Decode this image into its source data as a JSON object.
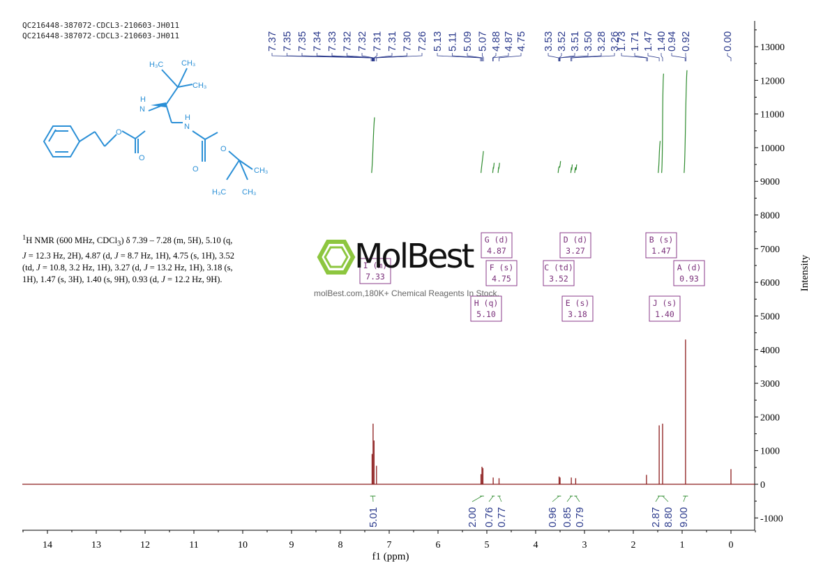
{
  "header": {
    "line1": "QC216448-387072-CDCL3-210603-JH011",
    "line2": "QC216448-387072-CDCL3-210603-JH011"
  },
  "nmr_text": {
    "sup": "1",
    "p1": "H NMR (600 MHz, CDCl",
    "sub": "3",
    "p2": ") δ 7.39 – 7.28 (m, 5H), 5.10 (q,",
    "j1": "J",
    "p3": " = 12.3 Hz, 2H), 4.87 (d, ",
    "j2": "J",
    "p4": " = 8.7 Hz, 1H), 4.75 (s, 1H), 3.52",
    "p5": "(td, ",
    "j3": "J",
    "p6": " = 10.8, 3.2 Hz, 1H), 3.27 (d, ",
    "j4": "J",
    "p7": " = 13.2 Hz, 1H), 3.18 (s,",
    "p8": "1H), 1.47 (s, 3H), 1.40 (s, 9H), 0.93 (d, ",
    "j5": "J",
    "p9": " = 12.2 Hz, 9H)."
  },
  "watermark": {
    "logo_text": "MolBest",
    "subtitle": "molBest.com,180K+ Chemical Reagents In Stock."
  },
  "structure_labels": {
    "h3c_top": "H₃C",
    "ch3_top": "CH₃",
    "ch3_mid": "CH₃",
    "nh_left_n": "N",
    "nh_left_h": "H",
    "nh_right_n": "N",
    "nh_right_h": "H",
    "o_left_ester": "O",
    "o_left_carbonyl": "O",
    "o_right_carbonyl": "O",
    "o_right_ester": "O",
    "ch3_right": "CH₃",
    "h3c_bottom": "H₃C",
    "ch3_bottom": "CH₃"
  },
  "colors": {
    "spectrum": "#8b1a1a",
    "integral": "#2e8b2e",
    "peak_labels": "#2b3a8c",
    "multiplet_box": "#8a3a8a",
    "structure": "#2a8fd6"
  },
  "chart_data": {
    "type": "line",
    "title": "",
    "xlabel": "f1 (ppm)",
    "ylabel": "Intensity",
    "xlim": [
      14.6,
      -0.5
    ],
    "ylim": [
      -1400,
      13700
    ],
    "x_reversed": true,
    "x_ticks": [
      "14",
      "13",
      "12",
      "11",
      "10",
      "9",
      "8",
      "7",
      "6",
      "5",
      "4",
      "3",
      "2",
      "1",
      "0"
    ],
    "x_tick_values": [
      14,
      13,
      12,
      11,
      10,
      9,
      8,
      7,
      6,
      5,
      4,
      3,
      2,
      1,
      0
    ],
    "y_ticks": [
      "-1000",
      "0",
      "1000",
      "2000",
      "3000",
      "4000",
      "5000",
      "6000",
      "7000",
      "8000",
      "9000",
      "10000",
      "11000",
      "12000",
      "13000"
    ],
    "y_tick_values": [
      -1000,
      0,
      1000,
      2000,
      3000,
      4000,
      5000,
      6000,
      7000,
      8000,
      9000,
      10000,
      11000,
      12000,
      13000
    ],
    "grid": false,
    "peaks": [
      {
        "ppm": 7.33,
        "height": 1800
      },
      {
        "ppm": 7.31,
        "height": 1300
      },
      {
        "ppm": 7.35,
        "height": 900
      },
      {
        "ppm": 7.26,
        "height": 550
      },
      {
        "ppm": 5.1,
        "height": 520
      },
      {
        "ppm": 5.08,
        "height": 480
      },
      {
        "ppm": 5.12,
        "height": 300
      },
      {
        "ppm": 4.87,
        "height": 200
      },
      {
        "ppm": 4.75,
        "height": 180
      },
      {
        "ppm": 3.52,
        "height": 230
      },
      {
        "ppm": 3.5,
        "height": 200
      },
      {
        "ppm": 3.27,
        "height": 200
      },
      {
        "ppm": 3.18,
        "height": 180
      },
      {
        "ppm": 1.73,
        "height": 280
      },
      {
        "ppm": 1.47,
        "height": 1750
      },
      {
        "ppm": 1.4,
        "height": 1800
      },
      {
        "ppm": 0.93,
        "height": 4300
      },
      {
        "ppm": 0.0,
        "height": 450
      }
    ],
    "peak_labels": [
      {
        "ppm": 7.37,
        "text": "7.37"
      },
      {
        "ppm": 7.35,
        "text": "7.35"
      },
      {
        "ppm": 7.35,
        "text": "7.35"
      },
      {
        "ppm": 7.34,
        "text": "7.34"
      },
      {
        "ppm": 7.33,
        "text": "7.33"
      },
      {
        "ppm": 7.32,
        "text": "7.32"
      },
      {
        "ppm": 7.32,
        "text": "7.32"
      },
      {
        "ppm": 7.31,
        "text": "7.31"
      },
      {
        "ppm": 7.31,
        "text": "7.31"
      },
      {
        "ppm": 7.3,
        "text": "7.30"
      },
      {
        "ppm": 7.26,
        "text": "7.26"
      },
      {
        "ppm": 5.13,
        "text": "5.13"
      },
      {
        "ppm": 5.11,
        "text": "5.11"
      },
      {
        "ppm": 5.09,
        "text": "5.09"
      },
      {
        "ppm": 5.07,
        "text": "5.07"
      },
      {
        "ppm": 4.88,
        "text": "4.88"
      },
      {
        "ppm": 4.87,
        "text": "4.87"
      },
      {
        "ppm": 4.75,
        "text": "4.75"
      },
      {
        "ppm": 3.53,
        "text": "3.53"
      },
      {
        "ppm": 3.52,
        "text": "3.52"
      },
      {
        "ppm": 3.51,
        "text": "3.51"
      },
      {
        "ppm": 3.5,
        "text": "3.50"
      },
      {
        "ppm": 3.28,
        "text": "3.28"
      },
      {
        "ppm": 3.26,
        "text": "3.26"
      },
      {
        "ppm": 1.73,
        "text": "1.73"
      },
      {
        "ppm": 1.71,
        "text": "1.71"
      },
      {
        "ppm": 1.47,
        "text": "1.47"
      },
      {
        "ppm": 1.4,
        "text": "1.40"
      },
      {
        "ppm": 0.94,
        "text": "0.94"
      },
      {
        "ppm": 0.92,
        "text": "0.92"
      },
      {
        "ppm": 0.0,
        "text": "0.00"
      }
    ],
    "integrals": [
      {
        "from": 7.39,
        "to": 7.28,
        "value": "5.01"
      },
      {
        "from": 5.14,
        "to": 5.06,
        "value": "2.00"
      },
      {
        "from": 4.9,
        "to": 4.84,
        "value": "0.76"
      },
      {
        "from": 4.78,
        "to": 4.72,
        "value": "0.77"
      },
      {
        "from": 3.56,
        "to": 3.48,
        "value": "0.96"
      },
      {
        "from": 3.3,
        "to": 3.24,
        "value": "0.85"
      },
      {
        "from": 3.21,
        "to": 3.15,
        "value": "0.79"
      },
      {
        "from": 1.5,
        "to": 1.44,
        "value": "2.87"
      },
      {
        "from": 1.44,
        "to": 1.36,
        "value": "8.80"
      },
      {
        "from": 0.98,
        "to": 0.88,
        "value": "9.00"
      }
    ],
    "multiplets": [
      {
        "name": "I (m)",
        "shift": "7.33"
      },
      {
        "name": "G (d)",
        "shift": "4.87"
      },
      {
        "name": "F (s)",
        "shift": "4.75"
      },
      {
        "name": "H (q)",
        "shift": "5.10"
      },
      {
        "name": "D (d)",
        "shift": "3.27"
      },
      {
        "name": "C (td)",
        "shift": "3.52"
      },
      {
        "name": "E (s)",
        "shift": "3.18"
      },
      {
        "name": "B (s)",
        "shift": "1.47"
      },
      {
        "name": "A (d)",
        "shift": "0.93"
      },
      {
        "name": "J (s)",
        "shift": "1.40"
      }
    ]
  }
}
